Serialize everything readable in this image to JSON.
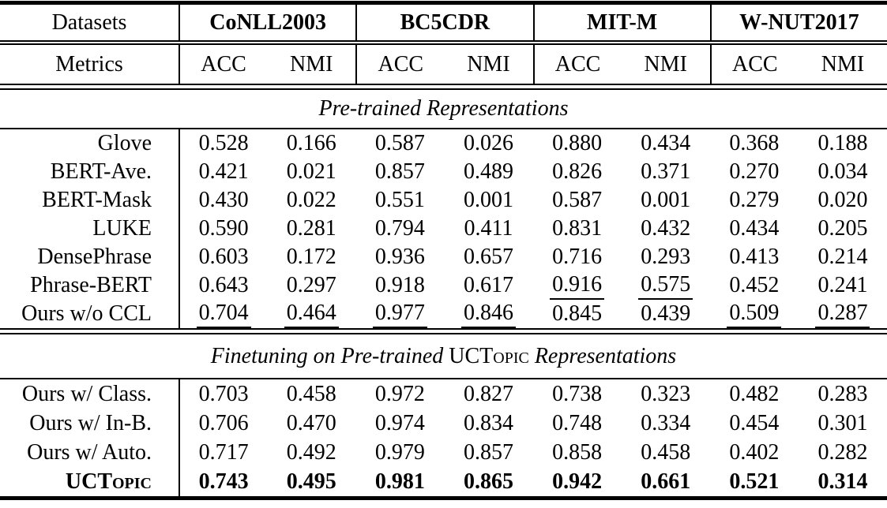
{
  "table": {
    "header": {
      "datasets_label": "Datasets",
      "dataset_groups": [
        "CoNLL2003",
        "BC5CDR",
        "MIT-M",
        "W-NUT2017"
      ],
      "metrics_label": "Metrics",
      "metric_cols": [
        "ACC",
        "NMI",
        "ACC",
        "NMI",
        "ACC",
        "NMI",
        "ACC",
        "NMI"
      ]
    },
    "sections": [
      {
        "title": "Pre-trained Representations",
        "rows": [
          {
            "label": "Glove",
            "values": [
              "0.528",
              "0.166",
              "0.587",
              "0.026",
              "0.880",
              "0.434",
              "0.368",
              "0.188"
            ]
          },
          {
            "label": "BERT-Ave.",
            "values": [
              "0.421",
              "0.021",
              "0.857",
              "0.489",
              "0.826",
              "0.371",
              "0.270",
              "0.034"
            ]
          },
          {
            "label": "BERT-Mask",
            "values": [
              "0.430",
              "0.022",
              "0.551",
              "0.001",
              "0.587",
              "0.001",
              "0.279",
              "0.020"
            ]
          },
          {
            "label": "LUKE",
            "values": [
              "0.590",
              "0.281",
              "0.794",
              "0.411",
              "0.831",
              "0.432",
              "0.434",
              "0.205"
            ]
          },
          {
            "label": "DensePhrase",
            "values": [
              "0.603",
              "0.172",
              "0.936",
              "0.657",
              "0.716",
              "0.293",
              "0.413",
              "0.214"
            ]
          },
          {
            "label": "Phrase-BERT",
            "values": [
              "0.643",
              "0.297",
              "0.918",
              "0.617",
              "0.916",
              "0.575",
              "0.452",
              "0.241"
            ],
            "underline": [
              4,
              5
            ]
          },
          {
            "label": "Ours w/o CCL",
            "values": [
              "0.704",
              "0.464",
              "0.977",
              "0.846",
              "0.845",
              "0.439",
              "0.509",
              "0.287"
            ],
            "underline": [
              0,
              1,
              2,
              3,
              6,
              7
            ]
          }
        ]
      },
      {
        "title_pre": "Finetuning on Pre-trained",
        "title_name": "UCTopic",
        "title_post": "Representations",
        "rows": [
          {
            "label": "Ours w/ Class.",
            "values": [
              "0.703",
              "0.458",
              "0.972",
              "0.827",
              "0.738",
              "0.323",
              "0.482",
              "0.283"
            ]
          },
          {
            "label": "Ours w/ In-B.",
            "values": [
              "0.706",
              "0.470",
              "0.974",
              "0.834",
              "0.748",
              "0.334",
              "0.454",
              "0.301"
            ]
          },
          {
            "label": "Ours w/ Auto.",
            "values": [
              "0.717",
              "0.492",
              "0.979",
              "0.857",
              "0.858",
              "0.458",
              "0.402",
              "0.282"
            ]
          },
          {
            "label": "UCTopic",
            "label_smallcaps": true,
            "bold": true,
            "values": [
              "0.743",
              "0.495",
              "0.981",
              "0.865",
              "0.942",
              "0.661",
              "0.521",
              "0.314"
            ]
          }
        ]
      }
    ]
  }
}
